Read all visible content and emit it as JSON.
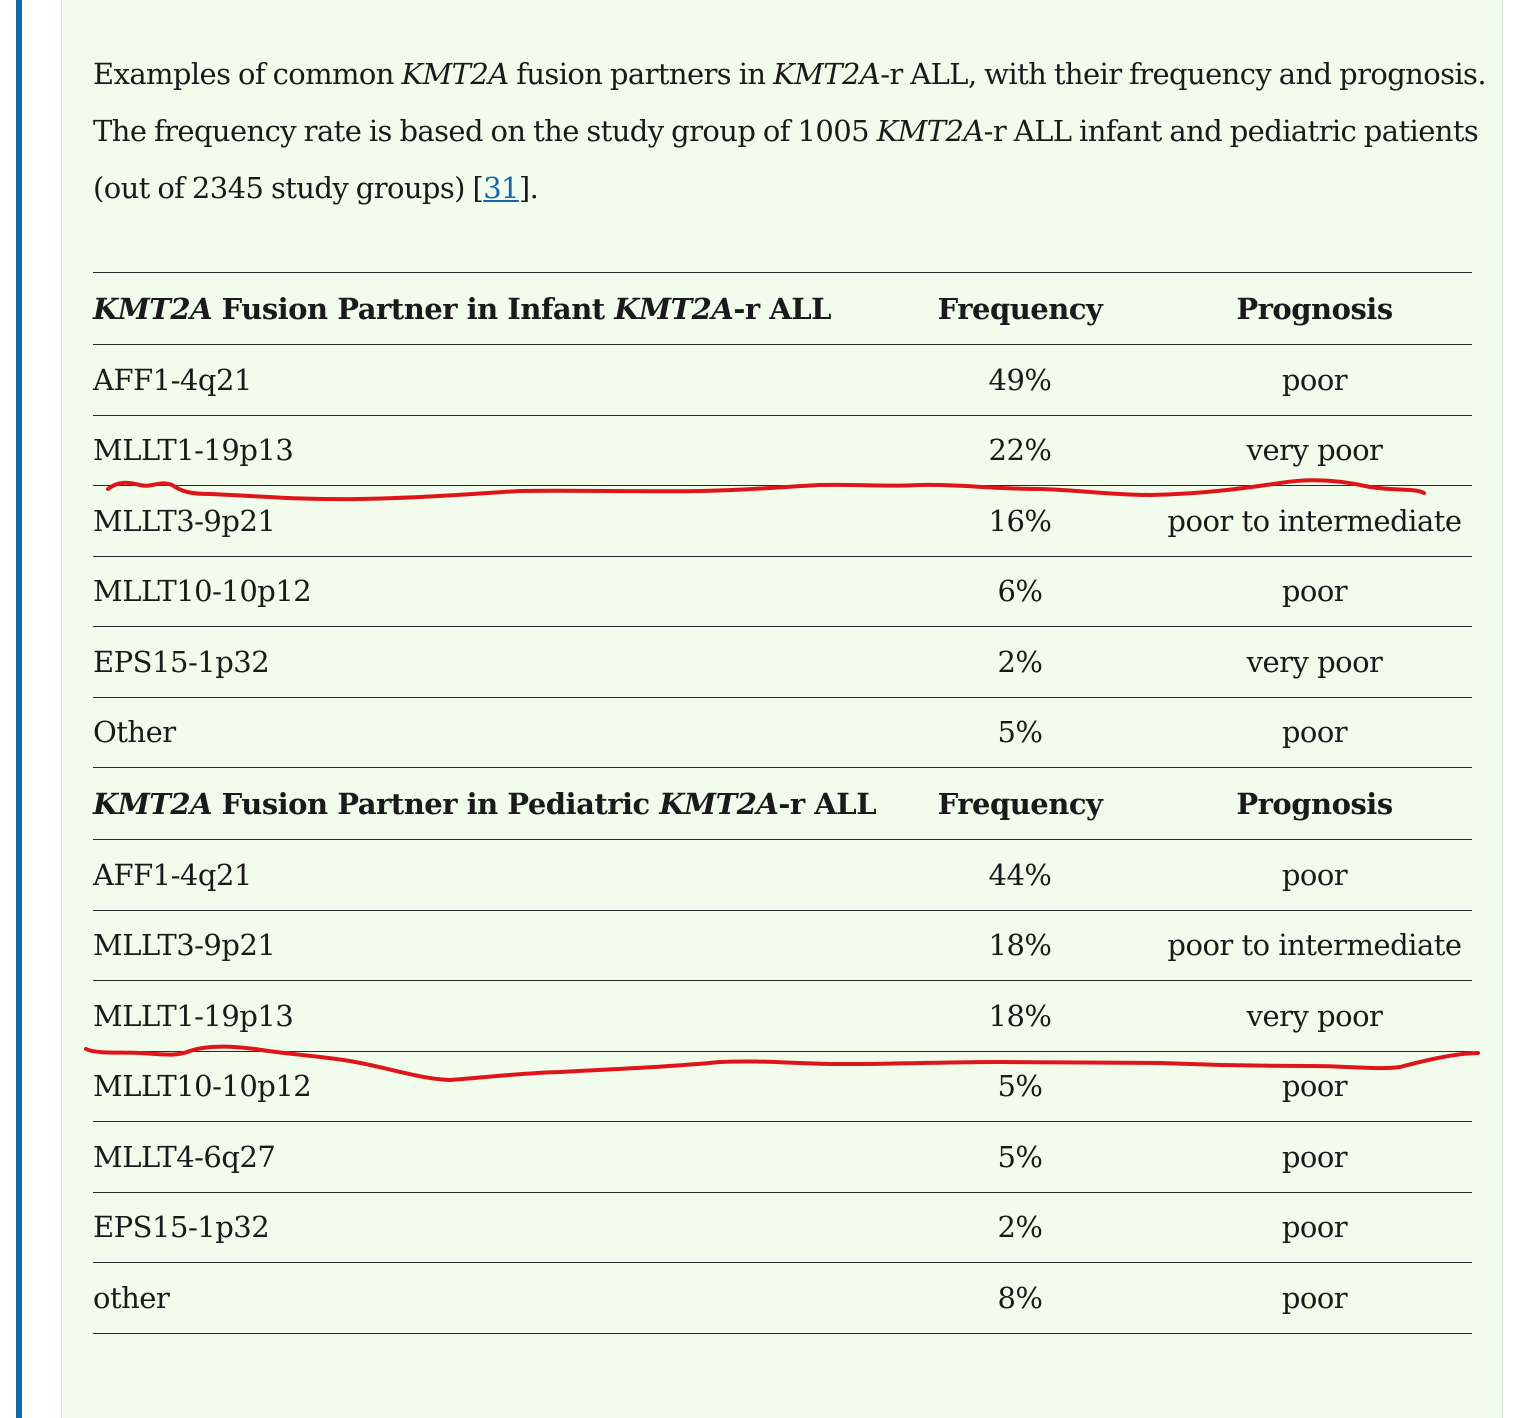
{
  "caption": {
    "t1": "Examples of common ",
    "t2": "KMT2A",
    "t3": " fusion partners in ",
    "t4": "KMT2A",
    "t5": "-r ALL, with their frequency and prognosis.",
    "t6": "The frequency rate is based on the study group of 1005 ",
    "t7": "KMT2A",
    "t8": "-r ALL infant and pediatric patients",
    "t9": "(out of 2345 study groups) [",
    "ref": "31",
    "t10": "]."
  },
  "infant_header": {
    "p1": "KMT2A",
    "p2": " Fusion Partner in Infant ",
    "p3": "KMT2A",
    "p4": "-r ALL",
    "frequency": "Frequency",
    "prognosis": "Prognosis"
  },
  "infant_rows": [
    {
      "partner": "AFF1-4q21",
      "frequency": "49%",
      "prognosis": "poor"
    },
    {
      "partner": "MLLT1-19p13",
      "frequency": "22%",
      "prognosis": "very poor"
    },
    {
      "partner": "MLLT3-9p21",
      "frequency": "16%",
      "prognosis": "poor to intermediate"
    },
    {
      "partner": "MLLT10-10p12",
      "frequency": "6%",
      "prognosis": "poor"
    },
    {
      "partner": "EPS15-1p32",
      "frequency": "2%",
      "prognosis": "very poor"
    },
    {
      "partner": "Other",
      "frequency": "5%",
      "prognosis": "poor"
    }
  ],
  "pediatric_header": {
    "p1": "KMT2A",
    "p2": " Fusion Partner in Pediatric ",
    "p3": "KMT2A",
    "p4": "-r ALL",
    "frequency": "Frequency",
    "prognosis": "Prognosis"
  },
  "pediatric_rows": [
    {
      "partner": "AFF1-4q21",
      "frequency": "44%",
      "prognosis": "poor"
    },
    {
      "partner": "MLLT3-9p21",
      "frequency": "18%",
      "prognosis": "poor to intermediate"
    },
    {
      "partner": "MLLT1-19p13",
      "frequency": "18%",
      "prognosis": "very poor"
    },
    {
      "partner": "MLLT10-10p12",
      "frequency": "5%",
      "prognosis": "poor"
    },
    {
      "partner": "MLLT4-6q27",
      "frequency": "5%",
      "prognosis": "poor"
    },
    {
      "partner": "EPS15-1p32",
      "frequency": "2%",
      "prognosis": "poor"
    },
    {
      "partner": "other",
      "frequency": "8%",
      "prognosis": "poor"
    }
  ],
  "colors": {
    "panel_background": "#f1fcec",
    "left_accent_bar": "#1667a8",
    "link": "#1667a8",
    "annotation_ink": "#e0151c"
  }
}
